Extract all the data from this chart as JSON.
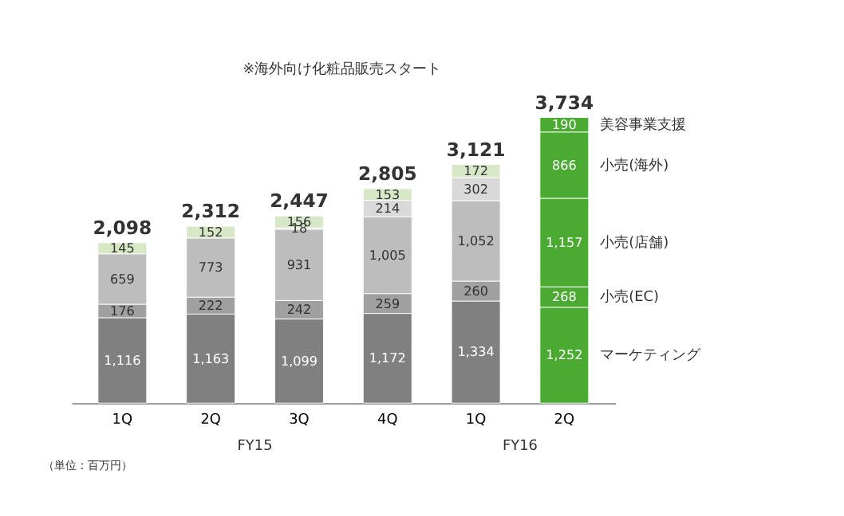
{
  "chart_data": {
    "type": "bar",
    "stacked": true,
    "categories": [
      "1Q",
      "2Q",
      "3Q",
      "4Q",
      "1Q",
      "2Q"
    ],
    "series": [
      {
        "name": "マーケティング",
        "colors": [
          "#808080",
          "#808080",
          "#808080",
          "#808080",
          "#808080",
          "#4aaa32"
        ],
        "values": [
          1116,
          1163,
          1099,
          1172,
          1334,
          1252
        ],
        "value_labels": [
          "1,116",
          "1,163",
          "1,099",
          "1,172",
          "1,334",
          "1,252"
        ]
      },
      {
        "name": "小売(EC)",
        "colors": [
          "#a0a0a0",
          "#a0a0a0",
          "#a0a0a0",
          "#a0a0a0",
          "#a0a0a0",
          "#4aaa32"
        ],
        "values": [
          176,
          222,
          242,
          259,
          260,
          268
        ],
        "value_labels": [
          "176",
          "222",
          "242",
          "259",
          "260",
          "268"
        ]
      },
      {
        "name": "小売(店舗)",
        "colors": [
          "#bdbdbd",
          "#bdbdbd",
          "#bdbdbd",
          "#bdbdbd",
          "#bdbdbd",
          "#4aaa32"
        ],
        "values": [
          659,
          773,
          931,
          1005,
          1052,
          1157
        ],
        "value_labels": [
          "659",
          "773",
          "931",
          "1,005",
          "1,052",
          "1,157"
        ]
      },
      {
        "name": "小売(海外)",
        "colors": [
          "#d9d9d9",
          "#d9d9d9",
          "#d9d9d9",
          "#d9d9d9",
          "#d9d9d9",
          "#4aaa32"
        ],
        "values": [
          null,
          null,
          18,
          214,
          302,
          866
        ],
        "value_labels": [
          null,
          null,
          "18",
          "214",
          "302",
          "866"
        ]
      },
      {
        "name": "美容事業支援",
        "colors": [
          "#d6e8c6",
          "#d6e8c6",
          "#d6e8c6",
          "#d6e8c6",
          "#d6e8c6",
          "#4aaa32"
        ],
        "values": [
          145,
          152,
          156,
          153,
          172,
          190
        ],
        "value_labels": [
          "145",
          "152",
          "156",
          "153",
          "172",
          "190"
        ]
      }
    ],
    "totals": [
      "2,098",
      "2,312",
      "2,447",
      "2,805",
      "3,121",
      "3,734"
    ],
    "annotations": [
      "※海外向け化粧品販売スタート",
      "FY15",
      "FY16",
      "（単位：百万円）"
    ]
  }
}
